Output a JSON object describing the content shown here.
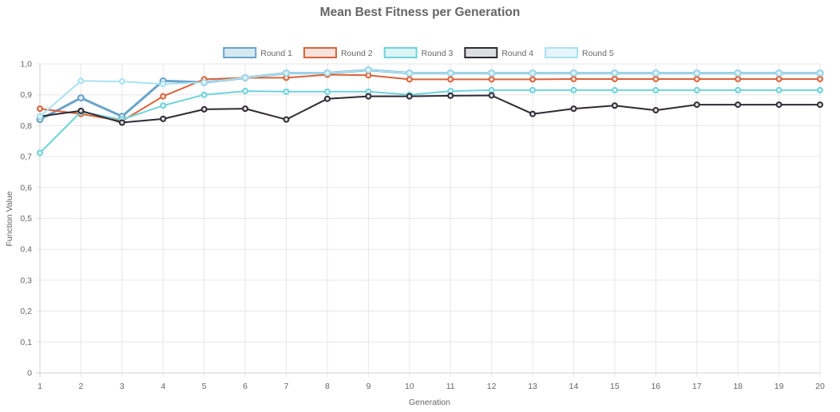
{
  "chart_data": {
    "type": "line",
    "title": "Mean Best Fitness per Generation",
    "xlabel": "Generation",
    "ylabel": "Function Value",
    "x": [
      1,
      2,
      3,
      4,
      5,
      6,
      7,
      8,
      9,
      10,
      11,
      12,
      13,
      14,
      15,
      16,
      17,
      18,
      19,
      20
    ],
    "ylim": [
      0,
      1
    ],
    "y_ticks": [
      "0",
      "0,1",
      "0,2",
      "0,3",
      "0,4",
      "0,5",
      "0,6",
      "0,7",
      "0,8",
      "0,9",
      "1,0"
    ],
    "grid": true,
    "legend_position": "top-center",
    "series": [
      {
        "name": "Round 1",
        "color": "#6aa3c8",
        "fill": "#d6e9f2",
        "values": [
          0.82,
          0.89,
          0.83,
          0.945,
          0.94,
          0.955,
          0.97,
          0.97,
          0.98,
          0.97,
          0.97,
          0.97,
          0.97,
          0.97,
          0.97,
          0.97,
          0.97,
          0.97,
          0.97,
          0.97
        ]
      },
      {
        "name": "Round 2",
        "color": "#d9633b",
        "fill": "#f7e3dc",
        "values": [
          0.855,
          0.838,
          0.815,
          0.895,
          0.95,
          0.955,
          0.955,
          0.965,
          0.963,
          0.95,
          0.95,
          0.95,
          0.95,
          0.951,
          0.951,
          0.951,
          0.951,
          0.951,
          0.951,
          0.951
        ]
      },
      {
        "name": "Round 3",
        "color": "#6fd3da",
        "fill": "#ddf4f6",
        "values": [
          0.712,
          0.845,
          0.82,
          0.865,
          0.9,
          0.912,
          0.91,
          0.91,
          0.91,
          0.9,
          0.912,
          0.915,
          0.915,
          0.915,
          0.915,
          0.915,
          0.915,
          0.915,
          0.915,
          0.915
        ]
      },
      {
        "name": "Round 4",
        "color": "#2f2a33",
        "fill": "#dcdee2",
        "values": [
          0.83,
          0.848,
          0.81,
          0.822,
          0.853,
          0.855,
          0.82,
          0.887,
          0.895,
          0.895,
          0.897,
          0.898,
          0.838,
          0.855,
          0.865,
          0.85,
          0.868,
          0.868,
          0.868,
          0.868
        ]
      },
      {
        "name": "Round 5",
        "color": "#a9e2f1",
        "fill": "#e6f5fa",
        "values": [
          0.83,
          0.945,
          0.943,
          0.935,
          0.94,
          0.955,
          0.97,
          0.97,
          0.98,
          0.97,
          0.97,
          0.97,
          0.97,
          0.97,
          0.97,
          0.97,
          0.97,
          0.97,
          0.97,
          0.97
        ]
      }
    ]
  }
}
